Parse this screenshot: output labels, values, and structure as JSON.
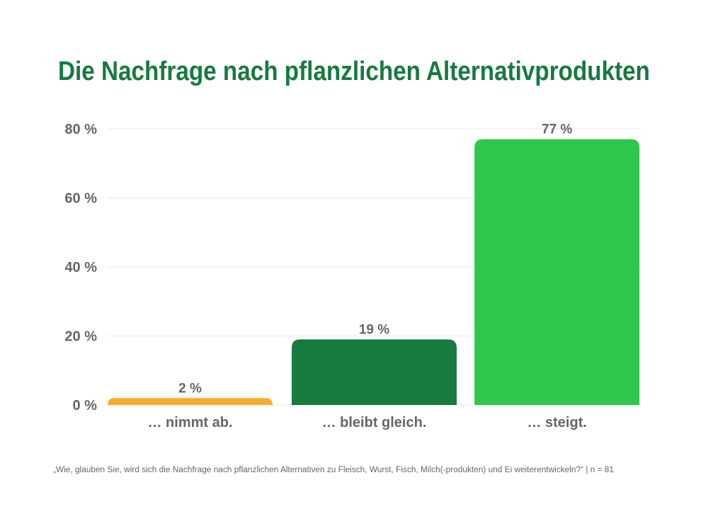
{
  "colors": {
    "title": "#177a3f",
    "grid": "#e8e8e8",
    "text": "#666666"
  },
  "chart_data": {
    "type": "bar",
    "title": "Die Nachfrage nach pflanzlichen Alternativprodukten",
    "categories": [
      "… nimmt ab.",
      "… bleibt gleich.",
      "… steigt."
    ],
    "values": [
      2,
      19,
      77
    ],
    "data_labels": [
      "2 %",
      "19 %",
      "77 %"
    ],
    "bar_colors": [
      "#f9ab2d",
      "#177a3f",
      "#2ec74c"
    ],
    "ylim": [
      0,
      80
    ],
    "yticks": [
      0,
      20,
      40,
      60,
      80
    ],
    "ytick_labels": [
      "0 %",
      "20 %",
      "40 %",
      "60 %",
      "80 %"
    ],
    "grid": true,
    "xlabel": "",
    "ylabel": "",
    "footnote": "„Wie, glauben Sie, wird sich die Nachfrage nach pflanzlichen Alternativen zu Fleisch, Wurst, Fisch, Milch(-produkten) und Ei weiterentwickeln?“ | n = 81"
  }
}
